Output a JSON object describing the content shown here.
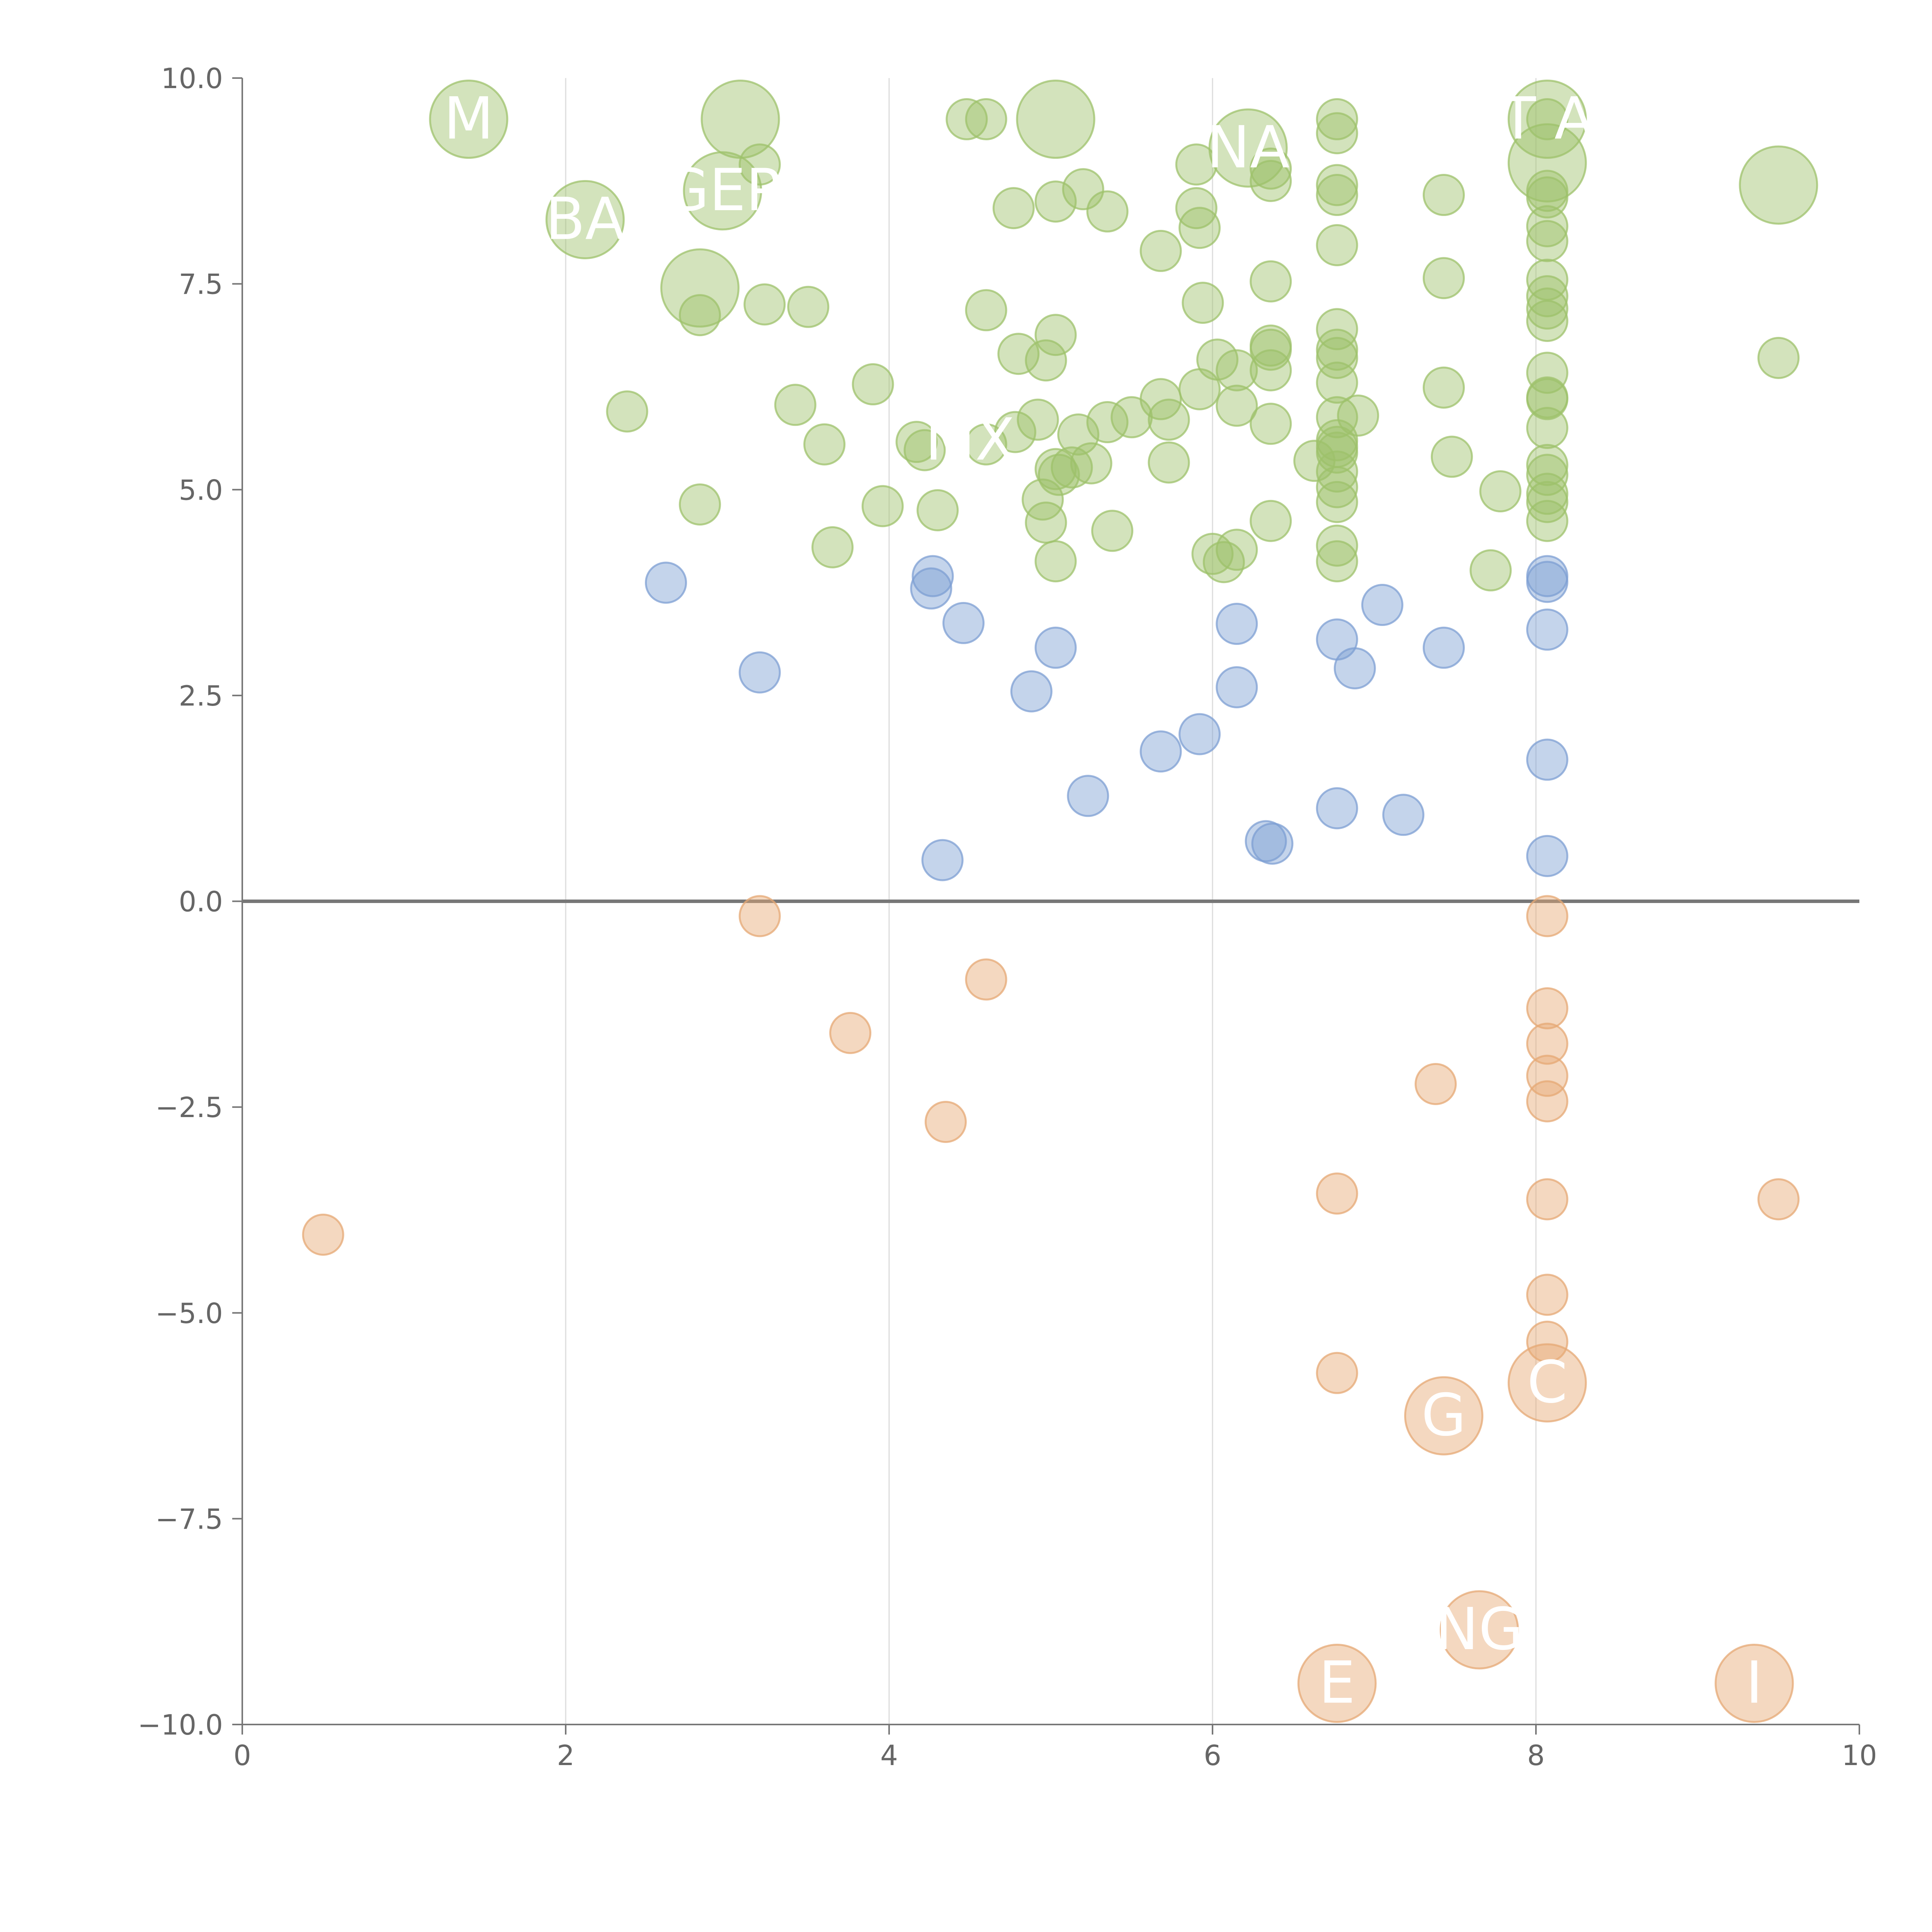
{
  "chart_data": {
    "type": "scatter",
    "title": "",
    "xlabel": "",
    "ylabel": "",
    "xlim": [
      0,
      10
    ],
    "ylim": [
      -10,
      10
    ],
    "grid": {
      "vertical": true,
      "horizontal": false
    },
    "x_ticks": [
      "0",
      "2",
      "4",
      "6",
      "8",
      "10"
    ],
    "y_ticks": [
      "10.0",
      "7.5",
      "5.0",
      "2.5",
      "0.0",
      "−2.5",
      "−5.0",
      "−7.5",
      "−10.0"
    ],
    "zero_line": true,
    "colors": {
      "high": "#9dc26b",
      "mid": "#7d9fd3",
      "low": "#e6a874"
    },
    "series": [
      {
        "color": "high",
        "points": [
          [
            1.4,
            9.5,
            3
          ],
          [
            3.08,
            9.5,
            3
          ],
          [
            5.03,
            9.5,
            3
          ],
          [
            8.07,
            9.5,
            3
          ],
          [
            6.22,
            9.15,
            3
          ],
          [
            8.07,
            8.97,
            3
          ],
          [
            9.5,
            8.7,
            3
          ],
          [
            2.97,
            8.63,
            3
          ],
          [
            2.12,
            8.28,
            3
          ],
          [
            2.83,
            7.45,
            3
          ],
          [
            4.48,
            9.5,
            1
          ],
          [
            4.6,
            9.5,
            1
          ],
          [
            6.77,
            9.5,
            1
          ],
          [
            6.77,
            9.33,
            1
          ],
          [
            8.07,
            9.5,
            1
          ],
          [
            3.2,
            8.95,
            1
          ],
          [
            5.9,
            8.95,
            1
          ],
          [
            6.36,
            8.9,
            1
          ],
          [
            6.36,
            8.75,
            1
          ],
          [
            6.77,
            8.7,
            1
          ],
          [
            6.77,
            8.58,
            1
          ],
          [
            8.07,
            8.63,
            1
          ],
          [
            8.07,
            8.55,
            1
          ],
          [
            7.43,
            8.58,
            1
          ],
          [
            5.2,
            8.65,
            1
          ],
          [
            5.03,
            8.5,
            1
          ],
          [
            4.77,
            8.42,
            1
          ],
          [
            5.35,
            8.38,
            1
          ],
          [
            5.9,
            8.42,
            1
          ],
          [
            5.92,
            8.18,
            1
          ],
          [
            5.68,
            7.9,
            1
          ],
          [
            6.77,
            7.97,
            1
          ],
          [
            8.07,
            8.2,
            1
          ],
          [
            8.07,
            8.02,
            1
          ],
          [
            6.36,
            7.53,
            1
          ],
          [
            7.43,
            7.57,
            1
          ],
          [
            8.07,
            7.55,
            1
          ],
          [
            8.07,
            7.35,
            1
          ],
          [
            8.07,
            7.2,
            1
          ],
          [
            8.07,
            7.05,
            1
          ],
          [
            3.23,
            7.25,
            1
          ],
          [
            3.5,
            7.22,
            1
          ],
          [
            2.83,
            7.12,
            1
          ],
          [
            4.6,
            7.18,
            1
          ],
          [
            5.94,
            7.27,
            1
          ],
          [
            6.77,
            6.95,
            1
          ],
          [
            6.36,
            6.75,
            1
          ],
          [
            6.36,
            6.7,
            1
          ],
          [
            6.77,
            6.7,
            1
          ],
          [
            6.77,
            6.6,
            1
          ],
          [
            5.03,
            6.88,
            1
          ],
          [
            4.8,
            6.65,
            1
          ],
          [
            4.97,
            6.57,
            1
          ],
          [
            6.03,
            6.58,
            1
          ],
          [
            6.15,
            6.45,
            1
          ],
          [
            6.36,
            6.45,
            1
          ],
          [
            8.07,
            6.42,
            1
          ],
          [
            9.5,
            6.6,
            1
          ],
          [
            6.77,
            6.3,
            1
          ],
          [
            7.43,
            6.24,
            1
          ],
          [
            8.07,
            6.12,
            1
          ],
          [
            8.07,
            6.1,
            1
          ],
          [
            2.38,
            5.95,
            1
          ],
          [
            3.42,
            6.03,
            1
          ],
          [
            3.9,
            6.28,
            1
          ],
          [
            5.92,
            6.22,
            1
          ],
          [
            5.68,
            6.1,
            1
          ],
          [
            6.15,
            6.02,
            1
          ],
          [
            4.92,
            5.85,
            1
          ],
          [
            5.35,
            5.82,
            1
          ],
          [
            5.5,
            5.88,
            1
          ],
          [
            5.73,
            5.85,
            1
          ],
          [
            6.77,
            5.88,
            1
          ],
          [
            6.9,
            5.9,
            1
          ],
          [
            6.36,
            5.8,
            1
          ],
          [
            8.07,
            5.75,
            1
          ],
          [
            3.6,
            5.55,
            1
          ],
          [
            4.17,
            5.58,
            1
          ],
          [
            4.22,
            5.48,
            1
          ],
          [
            4.6,
            5.55,
            1
          ],
          [
            4.78,
            5.7,
            1
          ],
          [
            5.17,
            5.67,
            1
          ],
          [
            6.77,
            5.6,
            1
          ],
          [
            6.77,
            5.52,
            1
          ],
          [
            6.77,
            5.45,
            1
          ],
          [
            6.63,
            5.35,
            1
          ],
          [
            6.77,
            5.22,
            1
          ],
          [
            7.48,
            5.4,
            1
          ],
          [
            8.07,
            5.3,
            1
          ],
          [
            8.07,
            5.18,
            1
          ],
          [
            5.73,
            5.33,
            1
          ],
          [
            5.25,
            5.32,
            1
          ],
          [
            5.13,
            5.27,
            1
          ],
          [
            5.03,
            5.25,
            1
          ],
          [
            5.05,
            5.18,
            1
          ],
          [
            6.77,
            5.03,
            1
          ],
          [
            7.78,
            4.98,
            1
          ],
          [
            8.07,
            4.95,
            1
          ],
          [
            8.07,
            4.85,
            1
          ],
          [
            2.83,
            4.82,
            1
          ],
          [
            3.96,
            4.8,
            1
          ],
          [
            4.3,
            4.75,
            1
          ],
          [
            4.95,
            4.88,
            1
          ],
          [
            6.77,
            4.85,
            1
          ],
          [
            8.07,
            4.62,
            1
          ],
          [
            4.97,
            4.6,
            1
          ],
          [
            5.38,
            4.5,
            1
          ],
          [
            6.36,
            4.62,
            1
          ],
          [
            3.65,
            4.3,
            1
          ],
          [
            6.0,
            4.22,
            1
          ],
          [
            6.15,
            4.27,
            1
          ],
          [
            6.07,
            4.12,
            1
          ],
          [
            6.77,
            4.32,
            1
          ],
          [
            6.77,
            4.13,
            1
          ],
          [
            5.03,
            4.13,
            1
          ],
          [
            7.72,
            4.02,
            1
          ]
        ]
      },
      {
        "color": "mid",
        "points": [
          [
            2.62,
            3.87,
            1
          ],
          [
            4.27,
            3.95,
            1
          ],
          [
            4.26,
            3.8,
            1
          ],
          [
            8.07,
            3.95,
            1
          ],
          [
            8.07,
            3.88,
            1
          ],
          [
            4.46,
            3.38,
            1
          ],
          [
            6.15,
            3.37,
            1
          ],
          [
            7.05,
            3.6,
            1
          ],
          [
            8.07,
            3.3,
            1
          ],
          [
            6.77,
            3.18,
            1
          ],
          [
            5.03,
            3.08,
            1
          ],
          [
            7.43,
            3.08,
            1
          ],
          [
            3.2,
            2.78,
            1
          ],
          [
            6.88,
            2.83,
            1
          ],
          [
            4.88,
            2.55,
            1
          ],
          [
            6.15,
            2.6,
            1
          ],
          [
            5.92,
            2.03,
            1
          ],
          [
            5.68,
            1.82,
            1
          ],
          [
            8.07,
            1.72,
            1
          ],
          [
            5.23,
            1.28,
            1
          ],
          [
            6.77,
            1.13,
            1
          ],
          [
            7.18,
            1.05,
            1
          ],
          [
            6.33,
            0.73,
            1
          ],
          [
            6.37,
            0.7,
            1
          ],
          [
            4.33,
            0.5,
            1
          ],
          [
            8.07,
            0.55,
            1
          ]
        ]
      },
      {
        "color": "low",
        "points": [
          [
            3.2,
            -0.18,
            1
          ],
          [
            8.07,
            -0.18,
            1
          ],
          [
            4.6,
            -0.95,
            1
          ],
          [
            3.76,
            -1.6,
            1
          ],
          [
            8.07,
            -1.3,
            1
          ],
          [
            8.07,
            -1.73,
            1
          ],
          [
            8.07,
            -2.12,
            1
          ],
          [
            7.38,
            -2.22,
            1
          ],
          [
            8.07,
            -2.43,
            1
          ],
          [
            4.35,
            -2.68,
            1
          ],
          [
            6.77,
            -3.55,
            1
          ],
          [
            8.07,
            -3.62,
            1
          ],
          [
            9.5,
            -3.62,
            1
          ],
          [
            0.5,
            -4.05,
            1
          ],
          [
            8.07,
            -4.78,
            1
          ],
          [
            8.07,
            -5.35,
            1
          ],
          [
            6.77,
            -5.73,
            1
          ],
          [
            8.07,
            -5.85,
            3
          ],
          [
            7.43,
            -6.25,
            3
          ],
          [
            7.65,
            -8.85,
            3
          ],
          [
            6.77,
            -9.5,
            3
          ],
          [
            9.35,
            -9.5,
            3
          ]
        ]
      }
    ],
    "annotations": [
      {
        "text": "M",
        "at": [
          1.4,
          9.5
        ]
      },
      {
        "text": "BA",
        "at": [
          2.12,
          8.28
        ]
      },
      {
        "text": "GEP",
        "at": [
          2.97,
          8.63
        ]
      },
      {
        "text": "MX",
        "at": [
          4.5,
          5.6
        ]
      },
      {
        "text": "NA",
        "at": [
          6.22,
          9.15
        ]
      },
      {
        "text": "T A",
        "at": [
          8.07,
          9.5
        ]
      },
      {
        "text": "G",
        "at": [
          7.43,
          -6.25
        ]
      },
      {
        "text": "C",
        "at": [
          8.07,
          -5.85
        ]
      },
      {
        "text": "NG",
        "at": [
          7.65,
          -8.85
        ]
      },
      {
        "text": "E",
        "at": [
          6.77,
          -9.5
        ]
      },
      {
        "text": "I",
        "at": [
          9.35,
          -9.5
        ]
      }
    ]
  }
}
